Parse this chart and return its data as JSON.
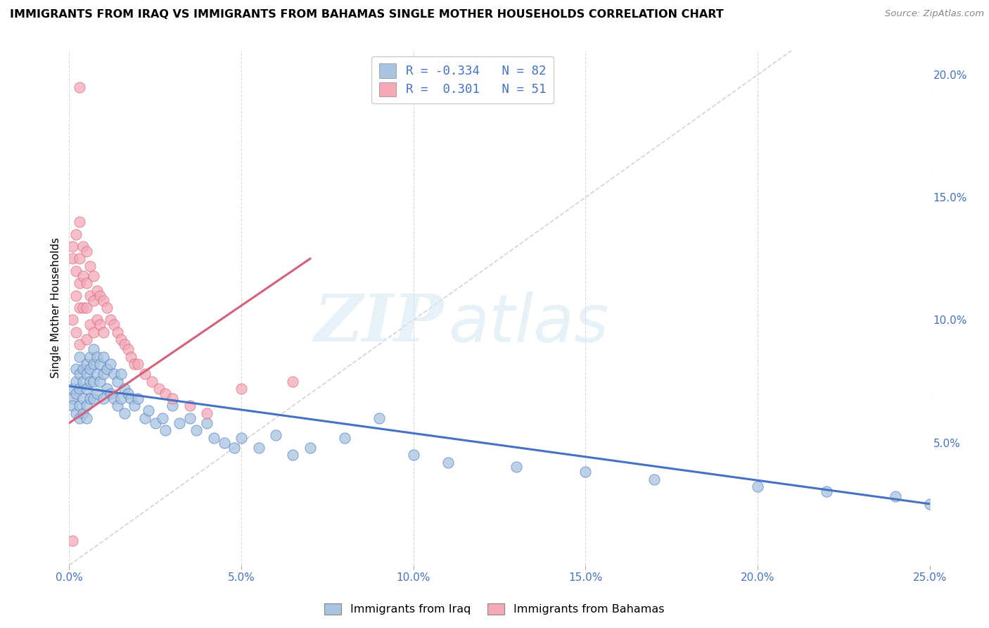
{
  "title": "IMMIGRANTS FROM IRAQ VS IMMIGRANTS FROM BAHAMAS SINGLE MOTHER HOUSEHOLDS CORRELATION CHART",
  "source": "Source: ZipAtlas.com",
  "ylabel": "Single Mother Households",
  "x_min": 0.0,
  "x_max": 0.25,
  "y_min": 0.0,
  "y_max": 0.21,
  "x_ticks": [
    0.0,
    0.05,
    0.1,
    0.15,
    0.2,
    0.25
  ],
  "x_tick_labels": [
    "0.0%",
    "5.0%",
    "10.0%",
    "15.0%",
    "20.0%",
    "25.0%"
  ],
  "y_ticks_right": [
    0.05,
    0.1,
    0.15,
    0.2
  ],
  "y_tick_labels_right": [
    "5.0%",
    "10.0%",
    "15.0%",
    "20.0%"
  ],
  "legend_iraq_r": "-0.334",
  "legend_iraq_n": "82",
  "legend_bahamas_r": "0.301",
  "legend_bahamas_n": "51",
  "color_iraq": "#a8c4e0",
  "color_bahamas": "#f4a8b8",
  "color_iraq_line": "#4472c4",
  "color_bahamas_line": "#d4607a",
  "color_diagonal": "#c8c8c8",
  "watermark_zip": "ZIP",
  "watermark_atlas": "atlas",
  "iraq_line_x0": 0.0,
  "iraq_line_y0": 0.073,
  "iraq_line_x1": 0.25,
  "iraq_line_y1": 0.025,
  "bahamas_line_x0": 0.0,
  "bahamas_line_y0": 0.058,
  "bahamas_line_x1": 0.07,
  "bahamas_line_y1": 0.125,
  "iraq_scatter_x": [
    0.001,
    0.001,
    0.001,
    0.002,
    0.002,
    0.002,
    0.002,
    0.003,
    0.003,
    0.003,
    0.003,
    0.003,
    0.004,
    0.004,
    0.004,
    0.004,
    0.005,
    0.005,
    0.005,
    0.005,
    0.005,
    0.006,
    0.006,
    0.006,
    0.006,
    0.007,
    0.007,
    0.007,
    0.007,
    0.008,
    0.008,
    0.008,
    0.009,
    0.009,
    0.01,
    0.01,
    0.01,
    0.011,
    0.011,
    0.012,
    0.012,
    0.013,
    0.013,
    0.014,
    0.014,
    0.015,
    0.015,
    0.016,
    0.016,
    0.017,
    0.018,
    0.019,
    0.02,
    0.022,
    0.023,
    0.025,
    0.027,
    0.028,
    0.03,
    0.032,
    0.035,
    0.037,
    0.04,
    0.042,
    0.045,
    0.048,
    0.05,
    0.055,
    0.06,
    0.065,
    0.07,
    0.08,
    0.09,
    0.1,
    0.11,
    0.13,
    0.15,
    0.17,
    0.2,
    0.22,
    0.24,
    0.25
  ],
  "iraq_scatter_y": [
    0.072,
    0.068,
    0.065,
    0.08,
    0.075,
    0.07,
    0.062,
    0.085,
    0.078,
    0.072,
    0.065,
    0.06,
    0.08,
    0.075,
    0.068,
    0.062,
    0.082,
    0.078,
    0.072,
    0.065,
    0.06,
    0.085,
    0.08,
    0.075,
    0.068,
    0.088,
    0.082,
    0.075,
    0.068,
    0.085,
    0.078,
    0.07,
    0.082,
    0.075,
    0.085,
    0.078,
    0.068,
    0.08,
    0.072,
    0.082,
    0.07,
    0.078,
    0.068,
    0.075,
    0.065,
    0.078,
    0.068,
    0.072,
    0.062,
    0.07,
    0.068,
    0.065,
    0.068,
    0.06,
    0.063,
    0.058,
    0.06,
    0.055,
    0.065,
    0.058,
    0.06,
    0.055,
    0.058,
    0.052,
    0.05,
    0.048,
    0.052,
    0.048,
    0.053,
    0.045,
    0.048,
    0.052,
    0.06,
    0.045,
    0.042,
    0.04,
    0.038,
    0.035,
    0.032,
    0.03,
    0.028,
    0.025
  ],
  "bahamas_scatter_x": [
    0.001,
    0.001,
    0.001,
    0.002,
    0.002,
    0.002,
    0.002,
    0.003,
    0.003,
    0.003,
    0.003,
    0.003,
    0.004,
    0.004,
    0.004,
    0.005,
    0.005,
    0.005,
    0.005,
    0.006,
    0.006,
    0.006,
    0.007,
    0.007,
    0.007,
    0.008,
    0.008,
    0.009,
    0.009,
    0.01,
    0.01,
    0.011,
    0.012,
    0.013,
    0.014,
    0.015,
    0.016,
    0.017,
    0.018,
    0.019,
    0.02,
    0.022,
    0.024,
    0.026,
    0.028,
    0.03,
    0.035,
    0.04,
    0.05,
    0.065,
    0.001
  ],
  "bahamas_scatter_y": [
    0.13,
    0.125,
    0.1,
    0.135,
    0.12,
    0.11,
    0.095,
    0.14,
    0.125,
    0.115,
    0.105,
    0.09,
    0.13,
    0.118,
    0.105,
    0.128,
    0.115,
    0.105,
    0.092,
    0.122,
    0.11,
    0.098,
    0.118,
    0.108,
    0.095,
    0.112,
    0.1,
    0.11,
    0.098,
    0.108,
    0.095,
    0.105,
    0.1,
    0.098,
    0.095,
    0.092,
    0.09,
    0.088,
    0.085,
    0.082,
    0.082,
    0.078,
    0.075,
    0.072,
    0.07,
    0.068,
    0.065,
    0.062,
    0.072,
    0.075,
    0.01
  ],
  "bahamas_outlier_x": [
    0.003
  ],
  "bahamas_outlier_y": [
    0.195
  ]
}
